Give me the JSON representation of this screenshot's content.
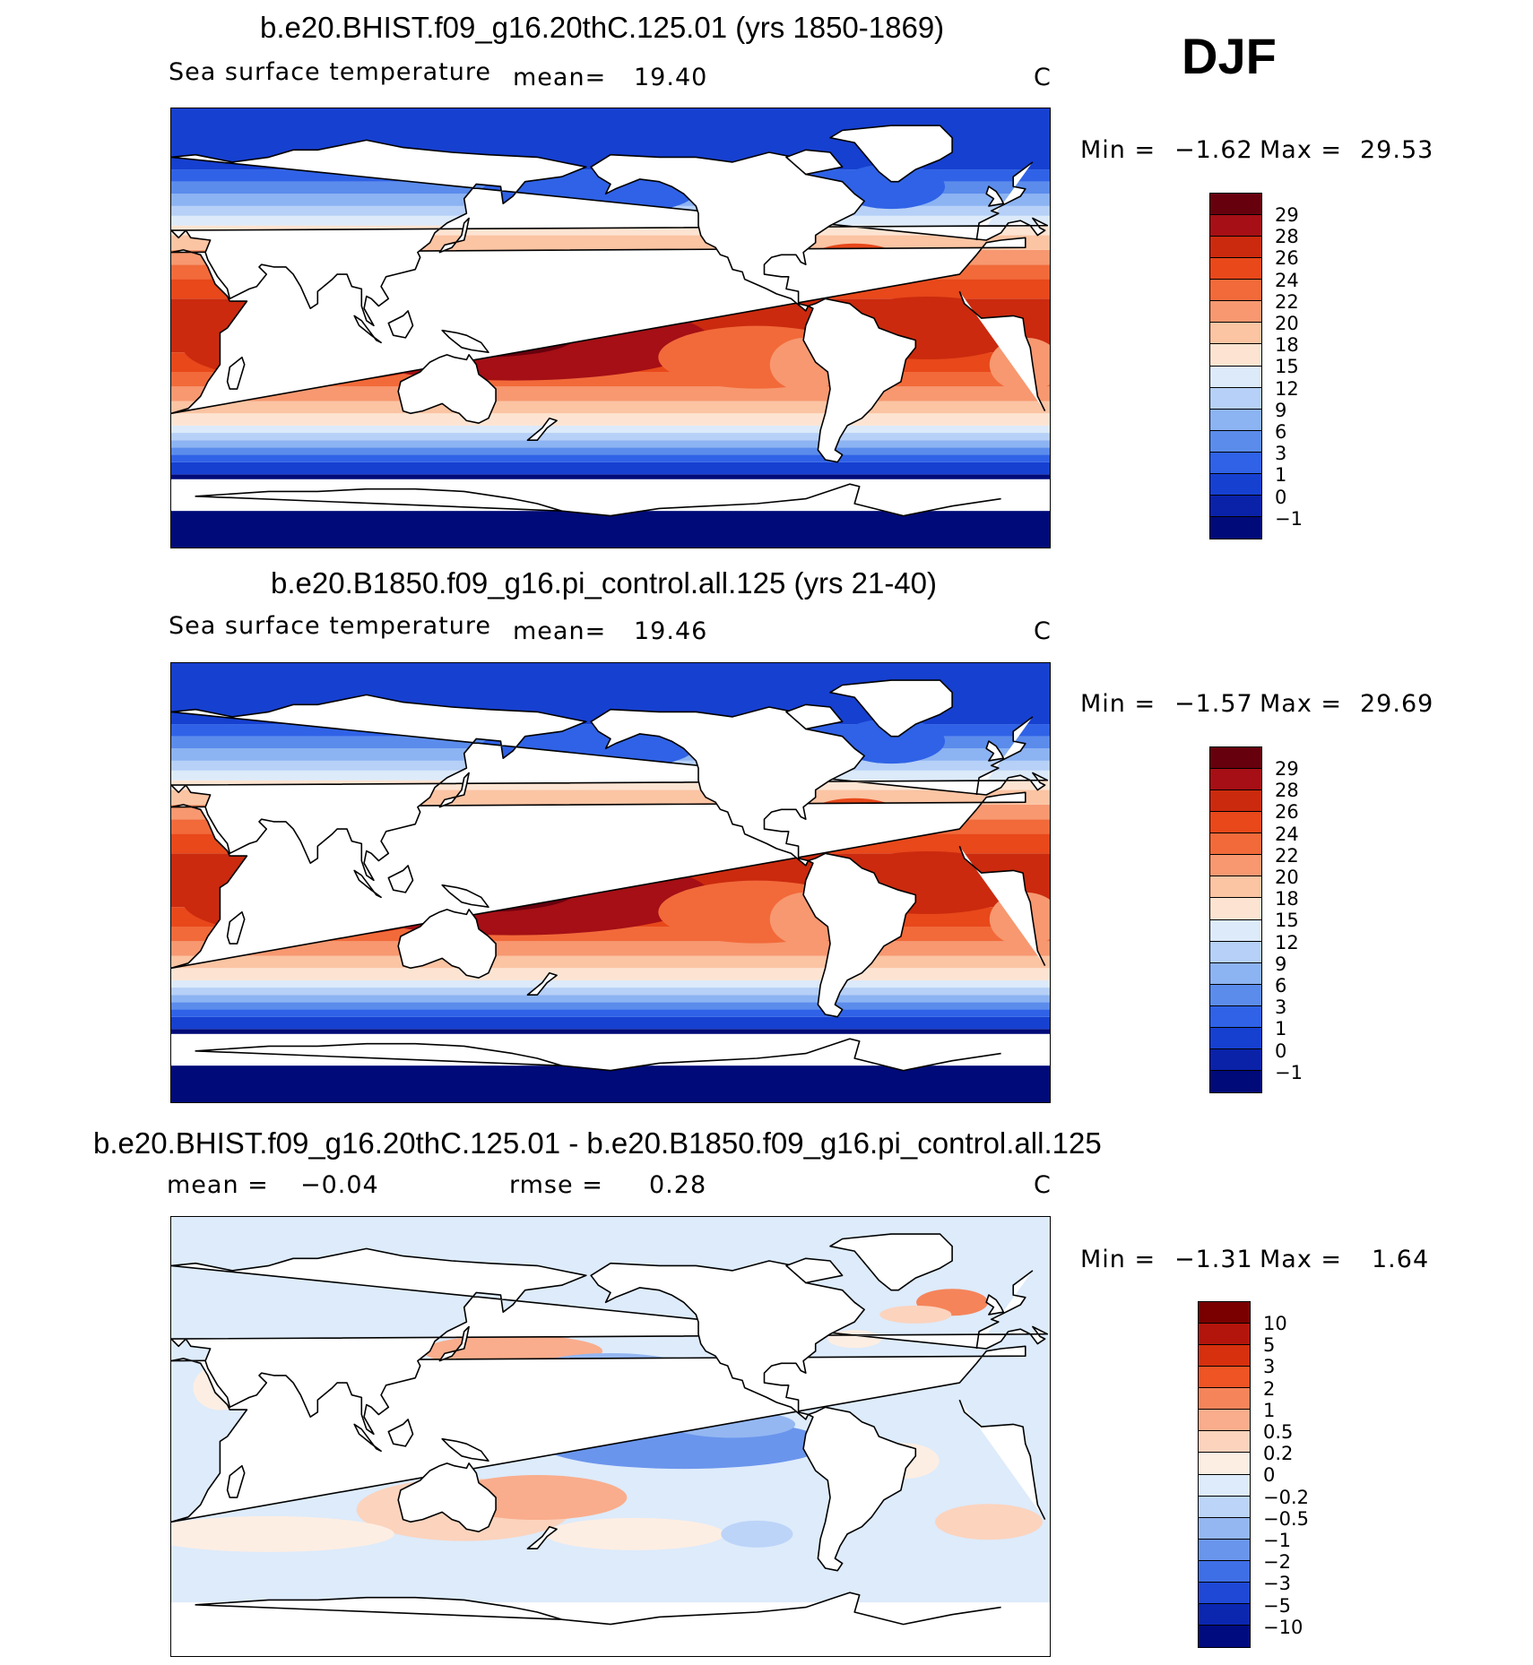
{
  "season": "DJF",
  "panels": [
    {
      "title": "b.e20.BHIST.f09_g16.20thC.125.01 (yrs 1850-1869)",
      "variable": "Sea surface temperature",
      "stat_label": "mean=",
      "stat_value": "19.40",
      "units": "C",
      "min_label": "Min =",
      "min_value": "−1.62",
      "max_label": "Max =",
      "max_value": "29.53",
      "colorbar": [
        "29",
        "28",
        "26",
        "24",
        "22",
        "20",
        "18",
        "15",
        "12",
        "9",
        "6",
        "3",
        "1",
        "0",
        "−1"
      ],
      "map_type": "sst"
    },
    {
      "title": "b.e20.B1850.f09_g16.pi_control.all.125 (yrs 21-40)",
      "variable": "Sea surface temperature",
      "stat_label": "mean=",
      "stat_value": "19.46",
      "units": "C",
      "min_label": "Min =",
      "min_value": "−1.57",
      "max_label": "Max =",
      "max_value": "29.69",
      "colorbar": [
        "29",
        "28",
        "26",
        "24",
        "22",
        "20",
        "18",
        "15",
        "12",
        "9",
        "6",
        "3",
        "1",
        "0",
        "−1"
      ],
      "map_type": "sst"
    },
    {
      "title": "b.e20.BHIST.f09_g16.20thC.125.01 - b.e20.B1850.f09_g16.pi_control.all.125",
      "stat_label": "mean =",
      "stat_value": "−0.04",
      "rmse_label": "rmse =",
      "rmse_value": "0.28",
      "units": "C",
      "min_label": "Min =",
      "min_value": "−1.31",
      "max_label": "Max =",
      "max_value": "1.64",
      "colorbar": [
        "10",
        "5",
        "3",
        "2",
        "1",
        "0.5",
        "0.2",
        "0",
        "−0.2",
        "−0.5",
        "−1",
        "−2",
        "−3",
        "−5",
        "−10"
      ],
      "map_type": "diff"
    }
  ],
  "colors": {
    "sst_scale": [
      "#67000d",
      "#a50f15",
      "#cb2a0e",
      "#e8481a",
      "#f26a3a",
      "#f79870",
      "#fbc4a3",
      "#fde4d2",
      "#dceafa",
      "#b6d0f7",
      "#8cb3f2",
      "#5b8cec",
      "#2f62e6",
      "#1640d0",
      "#0a22a8",
      "#000a78"
    ],
    "diff_scale": [
      "#7a0000",
      "#b3150c",
      "#d6300e",
      "#ee5424",
      "#f5845a",
      "#f9ad8c",
      "#fcd3bd",
      "#fdeee3",
      "#ddebfb",
      "#bcd4f8",
      "#94b7f2",
      "#6a95ec",
      "#3f6fe6",
      "#1f48d6",
      "#0b27b0",
      "#000b80"
    ],
    "land": "#ffffff",
    "coast": "#000000"
  }
}
